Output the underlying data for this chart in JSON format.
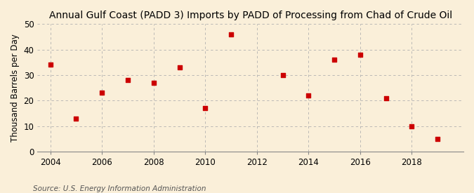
{
  "title": "Annual Gulf Coast (PADD 3) Imports by PADD of Processing from Chad of Crude Oil",
  "ylabel": "Thousand Barrels per Day",
  "source": "Source: U.S. Energy Information Administration",
  "background_color": "#faefd9",
  "marker_color": "#cc0000",
  "years": [
    2004,
    2005,
    2006,
    2007,
    2008,
    2009,
    2010,
    2011,
    2013,
    2014,
    2015,
    2016,
    2017,
    2018,
    2019
  ],
  "values": [
    34,
    13,
    23,
    28,
    27,
    33,
    17,
    46,
    30,
    22,
    36,
    38,
    21,
    10,
    5
  ],
  "ylim": [
    0,
    50
  ],
  "xlim": [
    2003.5,
    2020
  ],
  "yticks": [
    0,
    10,
    20,
    30,
    40,
    50
  ],
  "xticks": [
    2004,
    2006,
    2008,
    2010,
    2012,
    2014,
    2016,
    2018
  ],
  "title_fontsize": 10,
  "label_fontsize": 8.5,
  "tick_fontsize": 8.5,
  "source_fontsize": 7.5
}
